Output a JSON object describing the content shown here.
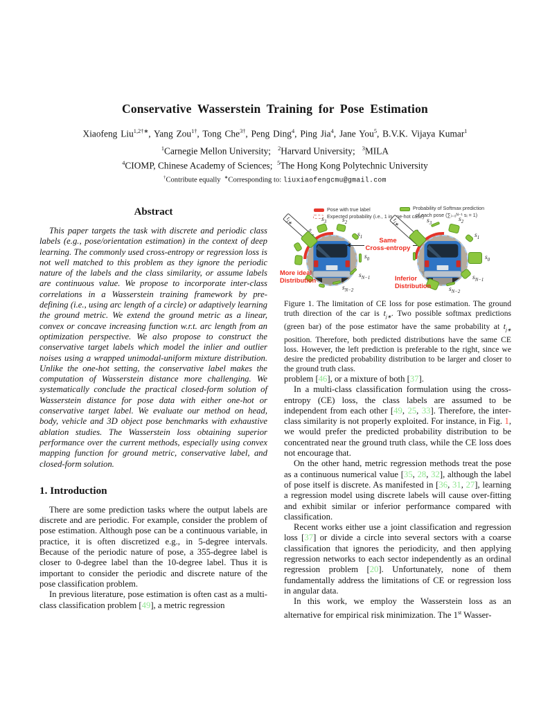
{
  "title": "Conservative Wasserstein Training for Pose Estimation",
  "authors_rich": [
    {
      "t": "Xiaofeng Liu"
    },
    {
      "t": "1,2†∗",
      "s": "sup"
    },
    {
      "t": ",  Yang Zou"
    },
    {
      "t": "1†",
      "s": "sup"
    },
    {
      "t": ",  Tong Che"
    },
    {
      "t": "3†",
      "s": "sup"
    },
    {
      "t": ",  Peng Ding"
    },
    {
      "t": "4",
      "s": "sup"
    },
    {
      "t": ",  Ping Jia"
    },
    {
      "t": "4",
      "s": "sup"
    },
    {
      "t": ",  Jane You"
    },
    {
      "t": "5",
      "s": "sup"
    },
    {
      "t": ",  B.V.K. Vijaya Kumar"
    },
    {
      "t": "1",
      "s": "sup"
    }
  ],
  "affiliations": {
    "line1_rich": [
      {
        "t": "1",
        "s": "sup"
      },
      {
        "t": "Carnegie Mellon University;   "
      },
      {
        "t": "2",
        "s": "sup"
      },
      {
        "t": "Harvard University;   "
      },
      {
        "t": "3",
        "s": "sup"
      },
      {
        "t": "MILA"
      }
    ],
    "line2_rich": [
      {
        "t": "4",
        "s": "sup"
      },
      {
        "t": "CIOMP, Chinese Academy of Sciences;  "
      },
      {
        "t": "5",
        "s": "sup"
      },
      {
        "t": "The Hong Kong Polytechnic University"
      }
    ]
  },
  "footnote_rich": [
    {
      "t": "†",
      "s": "sup"
    },
    {
      "t": "Contribute equally  "
    },
    {
      "t": "∗",
      "s": "sup"
    },
    {
      "t": "Corresponding to: "
    },
    {
      "t": "liuxiaofengcmu@gmail.com",
      "s": "mono"
    }
  ],
  "abstract": {
    "heading": "Abstract",
    "body": "This paper targets the task with discrete and periodic class labels (e.g., pose/orientation estimation) in the context of deep learning. The commonly used cross-entropy or regression loss is not well matched to this problem as they ignore the periodic nature of the labels and the class similarity, or assume labels are continuous value. We propose to incorporate inter-class correlations in a Wasserstein training framework by pre-defining (i.e., using arc length of a circle) or adaptively learning the ground metric. We extend the ground metric as a linear, convex or concave increasing function w.r.t. arc length from an optimization perspective. We also propose to construct the conservative target labels which model the inlier and outlier noises using a wrapped unimodal-uniform mixture distribution. Unlike the one-hot setting, the conservative label makes the computation of Wasserstein distance more challenging. We systematically conclude the practical closed-form solution of Wasserstein distance for pose data with either one-hot or conservative target label. We evaluate our method on head, body, vehicle and 3D object pose benchmarks with exhaustive ablation studies. The Wasserstein loss obtaining superior performance over the current methods, especially using convex mapping function for ground metric, conservative label, and closed-form solution."
  },
  "intro": {
    "heading": "1. Introduction",
    "p1": "There are some prediction tasks where the output labels are discrete and are periodic.  For example, consider the problem of pose estimation.  Although pose can be a continuous variable, in practice, it is often discretized e.g., in 5-degree intervals.  Because of the periodic nature of pose, a 355-degree label is closer to 0-degree label than the 10-degree label.  Thus it is important to consider the periodic and discrete nature of the pose classification problem.",
    "p2_rich": [
      {
        "t": "In previous literature, pose estimation is often cast as a multi-class classification problem ["
      },
      {
        "t": "49",
        "s": "cite"
      },
      {
        "t": "], a metric regression"
      }
    ]
  },
  "right_column": {
    "p1_rich": [
      {
        "t": "problem ["
      },
      {
        "t": "46",
        "s": "cite"
      },
      {
        "t": "], or a mixture of both ["
      },
      {
        "t": "37",
        "s": "cite"
      },
      {
        "t": "]."
      }
    ],
    "p2_rich": [
      {
        "t": "In a multi-class classification formulation using the cross-entropy (CE) loss, the class labels are assumed to be independent from each other ["
      },
      {
        "t": "49",
        "s": "cite"
      },
      {
        "t": ", "
      },
      {
        "t": "25",
        "s": "cite"
      },
      {
        "t": ", "
      },
      {
        "t": "33",
        "s": "cite"
      },
      {
        "t": "].  Therefore, the inter-class similarity is not properly exploited.  For instance, in Fig. "
      },
      {
        "t": "1",
        "s": "figref"
      },
      {
        "t": ", we would prefer the predicted probability distribution to be concentrated near the ground truth class, while the CE loss does not encourage that."
      }
    ],
    "p3_rich": [
      {
        "t": "On the other hand, metric regression methods treat the pose as a continuous numerical value ["
      },
      {
        "t": "35",
        "s": "cite"
      },
      {
        "t": ", "
      },
      {
        "t": "28",
        "s": "cite"
      },
      {
        "t": ", "
      },
      {
        "t": "32",
        "s": "cite"
      },
      {
        "t": "], although the label of pose itself is discrete.  As manifested in ["
      },
      {
        "t": "36",
        "s": "cite"
      },
      {
        "t": ", "
      },
      {
        "t": "31",
        "s": "cite"
      },
      {
        "t": ", "
      },
      {
        "t": "27",
        "s": "cite"
      },
      {
        "t": "], learning a regression model using discrete labels will cause over-fitting and exhibit similar or inferior performance compared with classification."
      }
    ],
    "p4_rich": [
      {
        "t": "Recent works either use a joint classification and regression loss ["
      },
      {
        "t": "37",
        "s": "cite"
      },
      {
        "t": "] or divide a circle into several sectors with a coarse classification that ignores the periodicity, and then applying regression networks to each sector independently as an ordinal regression problem ["
      },
      {
        "t": "20",
        "s": "cite"
      },
      {
        "t": "].  Unfortunately, none of them fundamentally address the limitations of CE or regression loss in angular data."
      }
    ],
    "p5_rich": [
      {
        "t": "In this work, we employ the Wasserstein loss as an alternative for empirical risk minimization.  The 1"
      },
      {
        "t": "st",
        "s": "sup"
      },
      {
        "t": " Wasser-"
      }
    ]
  },
  "figure": {
    "legend": {
      "pose_true": "Pose with true label",
      "expected": "Expected probability (i.e., 1 in one-hot case)",
      "softmax_line1": "Probability of Softmax prediction",
      "softmax_line2": "of each pose (∑ᵢ₌₀ᴺ⁻¹ sᵢ = 1)"
    },
    "center": {
      "line1": "Same",
      "line2": "Cross-entropy"
    },
    "left_caption": {
      "line1": "More ideal",
      "line2": "Distribution"
    },
    "right_caption": {
      "line1": "Inferior",
      "line2": "Distribution"
    },
    "pointer_label": {
      "b": "t",
      "u": "j∗"
    },
    "pred_label": {
      "b": "s",
      "u": "j∗"
    },
    "labels": [
      {
        "b": "s",
        "u": "3"
      },
      {
        "b": "s",
        "u": "2"
      },
      {
        "b": "s",
        "u": "1"
      },
      {
        "b": "s",
        "u": "0"
      },
      {
        "b": "s",
        "u": "N−1"
      },
      {
        "b": "s",
        "u": "N−2"
      }
    ],
    "caption_rich": [
      {
        "t": "Figure 1. The limitation of CE loss for pose estimation.  The ground truth direction of the car is "
      },
      {
        "t": "t",
        "s": "math"
      },
      {
        "t": "j",
        "s": "mathsub"
      },
      {
        "t": "∗",
        "s": "mathsub"
      },
      {
        "t": ".  Two possible softmax predictions (green bar) of the pose estimator have the same probability at "
      },
      {
        "t": "t",
        "s": "math"
      },
      {
        "t": "j",
        "s": "mathsub"
      },
      {
        "t": "∗",
        "s": "mathsub"
      },
      {
        "t": " position. Therefore, both predicted distributions have the same CE loss. However, the left prediction is preferable to the right, since we desire the predicted probability distribution to be larger and closer to the ground truth class."
      }
    ]
  },
  "colors": {
    "citation_green": "#8fe58f",
    "figure_link_red": "#ff4633",
    "accent_red": "#e8392f",
    "softmax_green": "#8cc63f",
    "softmax_green_border": "#5a9a22",
    "circle_dash_blue": "#a9c9ea",
    "van_blue": "#2f74c4"
  }
}
